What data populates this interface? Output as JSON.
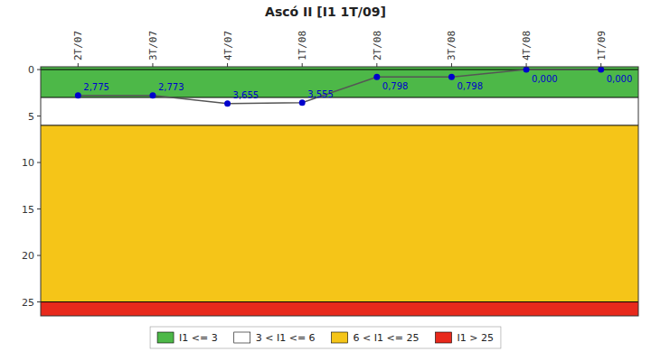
{
  "chart_data": {
    "type": "line",
    "title": "Ascó II [I1 1T/09]",
    "categories": [
      "2T/07",
      "3T/07",
      "4T/07",
      "1T/08",
      "2T/08",
      "3T/08",
      "4T/08",
      "1T/09"
    ],
    "series": [
      {
        "color": "#0000cc",
        "marker": "circle",
        "values": [
          2.775,
          2.773,
          3.655,
          3.555,
          0.798,
          0.798,
          0.0,
          0.0
        ],
        "value_labels": [
          "2,775",
          "2,773",
          "3,655",
          "3,555",
          "0,798",
          "0,798",
          "0,000",
          "0,000"
        ]
      }
    ],
    "data_labels": true,
    "ylim": [
      26.5,
      -0.3
    ],
    "yticks": [
      0,
      5,
      10,
      15,
      20,
      25
    ],
    "grid": false,
    "legend": "bottom",
    "zones": [
      {
        "from": -0.3,
        "to": 3,
        "color": "#4db848",
        "label": "I1 <= 3"
      },
      {
        "from": 3,
        "to": 6,
        "color": "#ffffff",
        "label": "3 < I1 <= 6"
      },
      {
        "from": 6,
        "to": 25,
        "color": "#f5c518",
        "label": "6 < I1 <= 25"
      },
      {
        "from": 25,
        "to": 27,
        "color": "#e8291c",
        "label": "I1 > 25"
      }
    ],
    "hlines": [
      0,
      3,
      6,
      25
    ]
  }
}
